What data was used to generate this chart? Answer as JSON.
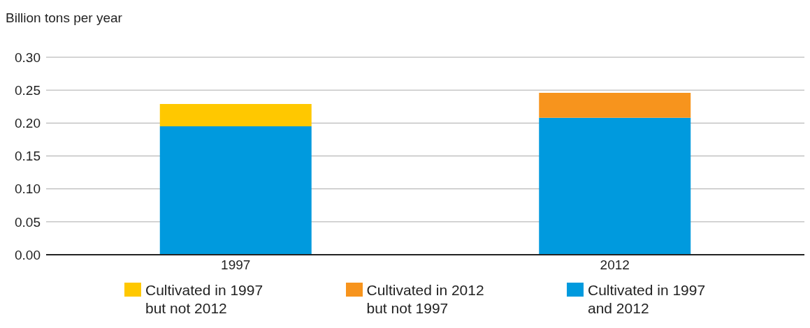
{
  "chart_data": {
    "type": "bar",
    "ylabel": "Billion tons per year",
    "categories": [
      "1997",
      "2012"
    ],
    "stacked": true,
    "series": [
      {
        "name": "Cultivated in 1997 and 2012",
        "color": "#009ade",
        "values": [
          0.195,
          0.208
        ]
      },
      {
        "name": "Cultivated in 2012 but not 1997",
        "color": "#f7941d",
        "values": [
          null,
          0.038
        ]
      },
      {
        "name": "Cultivated in 1997 but not 2012",
        "color": "#ffc800",
        "values": [
          0.034,
          null
        ]
      }
    ],
    "ylim": [
      0,
      0.3
    ],
    "yticks": [
      {
        "value": 0,
        "label": "0.00"
      },
      {
        "value": 0.05,
        "label": "0.05"
      },
      {
        "value": 0.1,
        "label": "0.10"
      },
      {
        "value": 0.15,
        "label": "0.15"
      },
      {
        "value": 0.2,
        "label": "0.20"
      },
      {
        "value": 0.25,
        "label": "0.25"
      },
      {
        "value": 0.3,
        "label": "0.30"
      }
    ],
    "grid": "y",
    "legend": "bottom"
  }
}
